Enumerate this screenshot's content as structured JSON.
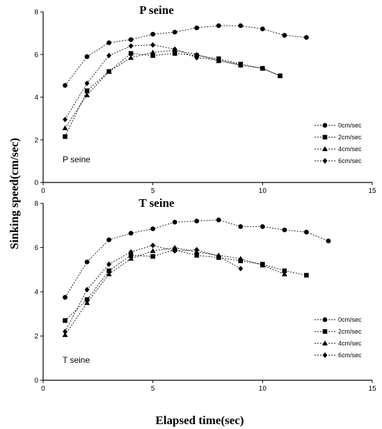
{
  "figure": {
    "ylabel": "Sinking speed(cm/sec)",
    "xlabel": "Elapsed time(sec)"
  },
  "chart_data": [
    {
      "type": "line",
      "title": "P seine",
      "panel_label": "P seine",
      "xlim": [
        0,
        15
      ],
      "ylim": [
        0,
        8
      ],
      "xticks": [
        "0",
        "5",
        "10",
        "15"
      ],
      "yticks": [
        "0",
        "2",
        "4",
        "6",
        "8"
      ],
      "legend_position": "right",
      "series": [
        {
          "name": "0cm/sec",
          "marker": "circle",
          "x": [
            1,
            2,
            3,
            4,
            5,
            6,
            7,
            8,
            9,
            10,
            11,
            12
          ],
          "y": [
            4.55,
            5.9,
            6.55,
            6.7,
            6.95,
            7.05,
            7.25,
            7.35,
            7.35,
            7.2,
            6.9,
            6.8
          ]
        },
        {
          "name": "2cm/sec",
          "marker": "square",
          "x": [
            1,
            2,
            3,
            4,
            5,
            6,
            7,
            8,
            9,
            10,
            10.8
          ],
          "y": [
            2.15,
            4.3,
            5.2,
            6.05,
            5.95,
            6.05,
            5.95,
            5.8,
            5.55,
            5.35,
            5.0
          ]
        },
        {
          "name": "4cm/sec",
          "marker": "triangle",
          "x": [
            1,
            2,
            3,
            4,
            5,
            6,
            7,
            8,
            9,
            10,
            10.8
          ],
          "y": [
            2.55,
            4.1,
            5.2,
            5.85,
            6.1,
            6.2,
            6.0,
            5.7,
            5.5,
            5.35,
            5.0
          ]
        },
        {
          "name": "6cm/sec",
          "marker": "diamond",
          "x": [
            1,
            2,
            3,
            4,
            5,
            6,
            7,
            8,
            9
          ],
          "y": [
            2.95,
            4.65,
            5.95,
            6.4,
            6.45,
            6.25,
            5.85,
            5.75,
            5.5
          ]
        }
      ]
    },
    {
      "type": "line",
      "title": "T seine",
      "panel_label": "T seine",
      "xlim": [
        0,
        15
      ],
      "ylim": [
        0,
        8
      ],
      "xticks": [
        "0",
        "5",
        "10",
        "15"
      ],
      "yticks": [
        "0",
        "2",
        "4",
        "6",
        "8"
      ],
      "legend_position": "right",
      "series": [
        {
          "name": "0cm/sec",
          "marker": "circle",
          "x": [
            1,
            2,
            3,
            4,
            5,
            6,
            7,
            8,
            9,
            10,
            11,
            12,
            13
          ],
          "y": [
            3.75,
            5.35,
            6.35,
            6.65,
            6.85,
            7.15,
            7.2,
            7.25,
            6.95,
            6.95,
            6.8,
            6.7,
            6.3
          ]
        },
        {
          "name": "2cm/sec",
          "marker": "square",
          "x": [
            1,
            2,
            3,
            4,
            5,
            6,
            7,
            8,
            9,
            10,
            11,
            12
          ],
          "y": [
            2.7,
            3.65,
            4.95,
            5.65,
            5.6,
            5.9,
            5.65,
            5.55,
            5.4,
            5.25,
            4.95,
            4.75
          ]
        },
        {
          "name": "4cm/sec",
          "marker": "triangle",
          "x": [
            1,
            2,
            3,
            4,
            5,
            6,
            7,
            8,
            9,
            10,
            11
          ],
          "y": [
            2.05,
            3.5,
            4.8,
            5.5,
            5.85,
            6.0,
            5.8,
            5.65,
            5.5,
            5.2,
            4.8
          ]
        },
        {
          "name": "6cm/sec",
          "marker": "diamond",
          "x": [
            1,
            2,
            3,
            4,
            5,
            6,
            7,
            8,
            9
          ],
          "y": [
            2.2,
            4.1,
            5.25,
            5.8,
            6.1,
            5.85,
            5.9,
            5.6,
            5.05
          ]
        }
      ]
    }
  ]
}
